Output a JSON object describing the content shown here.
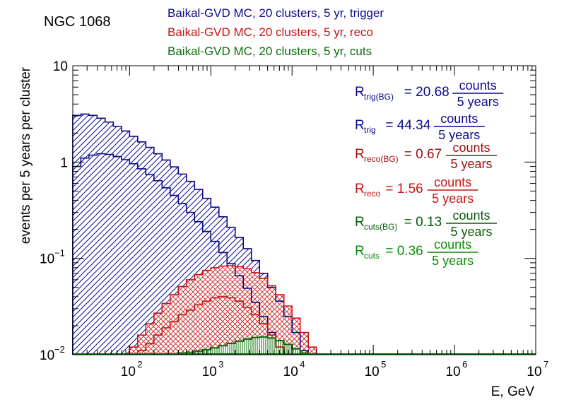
{
  "chart_data": {
    "type": "histogram",
    "title": "NGC 1068",
    "xlabel": "E, GeV",
    "ylabel": "events per 5 years per cluster",
    "x_scale": "log",
    "y_scale": "log",
    "xlim": [
      20,
      10000000
    ],
    "ylim": [
      0.01,
      10
    ],
    "x_ticks": [
      {
        "base": "10",
        "exp": "2"
      },
      {
        "base": "10",
        "exp": "3"
      },
      {
        "base": "10",
        "exp": "4"
      },
      {
        "base": "10",
        "exp": "5"
      },
      {
        "base": "10",
        "exp": "6"
      },
      {
        "base": "10",
        "exp": "7"
      }
    ],
    "y_ticks": [
      {
        "text": "10",
        "exp": ""
      },
      {
        "text": "1",
        "exp": ""
      },
      {
        "text": "10",
        "exp": "−1"
      },
      {
        "text": "10",
        "exp": "−2"
      }
    ],
    "bins_per_decade": 10,
    "bin_start_log10": 1.3,
    "legend": [
      {
        "text": "Baikal-GVD MC, 20 clusters, 5 yr, trigger",
        "color": "#0a0a8c"
      },
      {
        "text": "Baikal-GVD MC, 20 clusters, 5 yr, reco",
        "color": "#c81414"
      },
      {
        "text": "Baikal-GVD MC, 20 clusters, 5 yr, cuts",
        "color": "#0a6e0a"
      }
    ],
    "annotations": [
      {
        "sym": "R",
        "sub": "trig(BG)",
        "value": "= 20.68",
        "num": "counts",
        "den": "5 years",
        "color": "#0a0a8c"
      },
      {
        "sym": "R",
        "sub": "trig",
        "value": "= 44.34",
        "num": "counts",
        "den": "5 years",
        "color": "#0a0a8c"
      },
      {
        "sym": "R",
        "sub": "reco(BG)",
        "value": "= 0.67",
        "num": "counts",
        "den": "5 years",
        "color": "#a01010"
      },
      {
        "sym": "R",
        "sub": "reco",
        "value": "= 1.56",
        "num": "counts",
        "den": "5 years",
        "color": "#c81414"
      },
      {
        "sym": "R",
        "sub": "cuts(BG)",
        "value": "= 0.13",
        "num": "counts",
        "den": "5 years",
        "color": "#0a5a0a"
      },
      {
        "sym": "R",
        "sub": "cuts",
        "value": "= 0.36",
        "num": "counts",
        "den": "5 years",
        "color": "#0a8c0a"
      }
    ],
    "series": [
      {
        "key": "trig_total",
        "color": "#0a0a8c",
        "values": [
          3.05,
          3.15,
          3.05,
          2.85,
          2.6,
          2.35,
          2.1,
          1.85,
          1.62,
          1.42,
          1.22,
          1.05,
          0.89,
          0.75,
          0.63,
          0.52,
          0.42,
          0.34,
          0.27,
          0.21,
          0.165,
          0.126,
          0.095,
          0.07,
          0.05,
          0.036,
          0.025,
          0.017,
          0.011
        ]
      },
      {
        "key": "trig_bg",
        "color": "#0a0a8c",
        "values": [
          0.9,
          1.1,
          1.18,
          1.22,
          1.2,
          1.14,
          1.06,
          0.96,
          0.85,
          0.74,
          0.64,
          0.54,
          0.45,
          0.37,
          0.3,
          0.24,
          0.19,
          0.15,
          0.115,
          0.088,
          0.066,
          0.049,
          0.035,
          0.025,
          0.017,
          0.012
        ]
      },
      {
        "key": "reco_total",
        "start_bin": 7,
        "color": "#c81414",
        "values": [
          0.012,
          0.016,
          0.021,
          0.027,
          0.034,
          0.042,
          0.051,
          0.06,
          0.068,
          0.075,
          0.08,
          0.083,
          0.084,
          0.082,
          0.078,
          0.071,
          0.062,
          0.052,
          0.042,
          0.032,
          0.024,
          0.017,
          0.012
        ]
      },
      {
        "key": "reco_bg",
        "start_bin": 8,
        "color": "#c81414",
        "values": [
          0.011,
          0.013,
          0.016,
          0.019,
          0.022,
          0.026,
          0.029,
          0.033,
          0.036,
          0.039,
          0.04,
          0.039,
          0.036,
          0.031,
          0.026,
          0.021,
          0.016,
          0.012
        ]
      },
      {
        "key": "cuts_total",
        "start_bin": 12,
        "color": "#0a6e0a",
        "values": [
          0.0102,
          0.0104,
          0.0106,
          0.0109,
          0.0113,
          0.0118,
          0.0124,
          0.0131,
          0.0138,
          0.0145,
          0.0151,
          0.0153,
          0.0149,
          0.014,
          0.0128,
          0.0115,
          0.0104
        ]
      }
    ]
  }
}
